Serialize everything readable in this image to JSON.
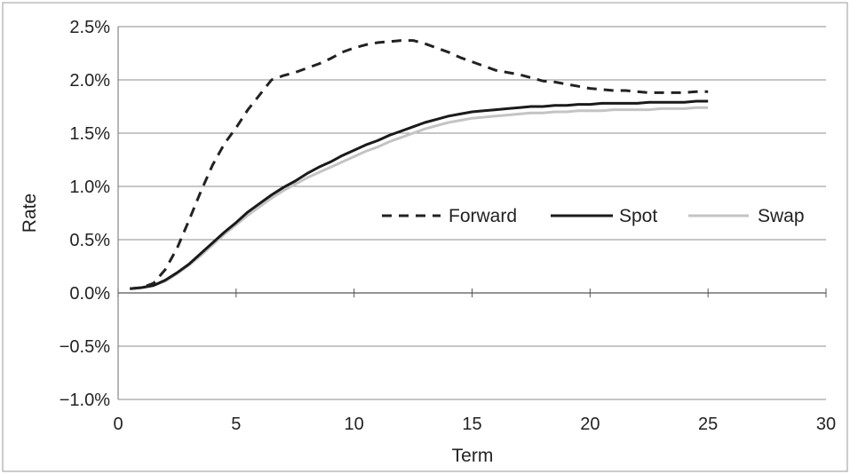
{
  "chart_data": {
    "type": "line",
    "xlabel": "Term",
    "ylabel": "Rate",
    "xlim": [
      0,
      30
    ],
    "ylim": [
      -1.0,
      2.5
    ],
    "x_ticks": [
      0,
      5,
      10,
      15,
      20,
      25,
      30
    ],
    "x_tick_labels": [
      "0",
      "5",
      "10",
      "15",
      "20",
      "25",
      "30"
    ],
    "y_ticks": [
      -1.0,
      -0.5,
      0.0,
      0.5,
      1.0,
      1.5,
      2.0,
      2.5
    ],
    "y_tick_labels": [
      "−1.0%",
      "−0.5%",
      "0.0%",
      "0.5%",
      "1.0%",
      "1.5%",
      "2.0%",
      "2.5%"
    ],
    "grid": "horizontal",
    "legend_position": "center-right",
    "series": [
      {
        "name": "Forward",
        "style": "dashed",
        "color": "#222222",
        "x": [
          0.5,
          1,
          1.5,
          2,
          2.5,
          3,
          3.5,
          4,
          4.5,
          5,
          5.5,
          6,
          6.5,
          7,
          7.5,
          8,
          8.5,
          9,
          9.5,
          10,
          10.5,
          11,
          11.5,
          12,
          12.5,
          13,
          13.5,
          14,
          14.5,
          15,
          15.5,
          16,
          16.5,
          17,
          17.5,
          18,
          18.5,
          19,
          19.5,
          20,
          20.5,
          21,
          21.5,
          22,
          22.5,
          23,
          23.5,
          24,
          24.5,
          25
        ],
        "values": [
          0.04,
          0.05,
          0.09,
          0.22,
          0.42,
          0.68,
          0.95,
          1.2,
          1.4,
          1.55,
          1.72,
          1.86,
          2.0,
          2.04,
          2.07,
          2.11,
          2.15,
          2.2,
          2.26,
          2.3,
          2.33,
          2.35,
          2.36,
          2.37,
          2.37,
          2.34,
          2.3,
          2.26,
          2.21,
          2.17,
          2.13,
          2.09,
          2.07,
          2.05,
          2.02,
          1.99,
          1.98,
          1.96,
          1.94,
          1.92,
          1.91,
          1.9,
          1.9,
          1.89,
          1.88,
          1.88,
          1.88,
          1.88,
          1.89,
          1.89
        ]
      },
      {
        "name": "Spot",
        "style": "solid",
        "color": "#1a1a1a",
        "x": [
          0.5,
          1,
          1.5,
          2,
          2.5,
          3,
          3.5,
          4,
          4.5,
          5,
          5.5,
          6,
          6.5,
          7,
          7.5,
          8,
          8.5,
          9,
          9.5,
          10,
          10.5,
          11,
          11.5,
          12,
          12.5,
          13,
          13.5,
          14,
          14.5,
          15,
          15.5,
          16,
          16.5,
          17,
          17.5,
          18,
          18.5,
          19,
          19.5,
          20,
          20.5,
          21,
          21.5,
          22,
          22.5,
          23,
          23.5,
          24,
          24.5,
          25
        ],
        "values": [
          0.04,
          0.05,
          0.07,
          0.12,
          0.19,
          0.27,
          0.37,
          0.47,
          0.57,
          0.66,
          0.76,
          0.84,
          0.92,
          0.99,
          1.05,
          1.12,
          1.18,
          1.23,
          1.29,
          1.34,
          1.39,
          1.43,
          1.48,
          1.52,
          1.56,
          1.6,
          1.63,
          1.66,
          1.68,
          1.7,
          1.71,
          1.72,
          1.73,
          1.74,
          1.75,
          1.75,
          1.76,
          1.76,
          1.77,
          1.77,
          1.78,
          1.78,
          1.78,
          1.78,
          1.79,
          1.79,
          1.79,
          1.79,
          1.8,
          1.8
        ]
      },
      {
        "name": "Swap",
        "style": "solid",
        "color": "#c4c4c4",
        "x": [
          0.5,
          1,
          1.5,
          2,
          2.5,
          3,
          3.5,
          4,
          4.5,
          5,
          5.5,
          6,
          6.5,
          7,
          7.5,
          8,
          8.5,
          9,
          9.5,
          10,
          10.5,
          11,
          11.5,
          12,
          12.5,
          13,
          13.5,
          14,
          14.5,
          15,
          15.5,
          16,
          16.5,
          17,
          17.5,
          18,
          18.5,
          19,
          19.5,
          20,
          20.5,
          21,
          21.5,
          22,
          22.5,
          23,
          23.5,
          24,
          24.5,
          25
        ],
        "values": [
          0.04,
          0.05,
          0.07,
          0.11,
          0.18,
          0.26,
          0.35,
          0.45,
          0.55,
          0.64,
          0.73,
          0.81,
          0.89,
          0.96,
          1.02,
          1.08,
          1.13,
          1.18,
          1.23,
          1.28,
          1.33,
          1.37,
          1.42,
          1.46,
          1.5,
          1.54,
          1.57,
          1.6,
          1.62,
          1.64,
          1.65,
          1.66,
          1.67,
          1.68,
          1.69,
          1.69,
          1.7,
          1.7,
          1.71,
          1.71,
          1.71,
          1.72,
          1.72,
          1.72,
          1.72,
          1.73,
          1.73,
          1.73,
          1.74,
          1.74
        ]
      }
    ]
  }
}
